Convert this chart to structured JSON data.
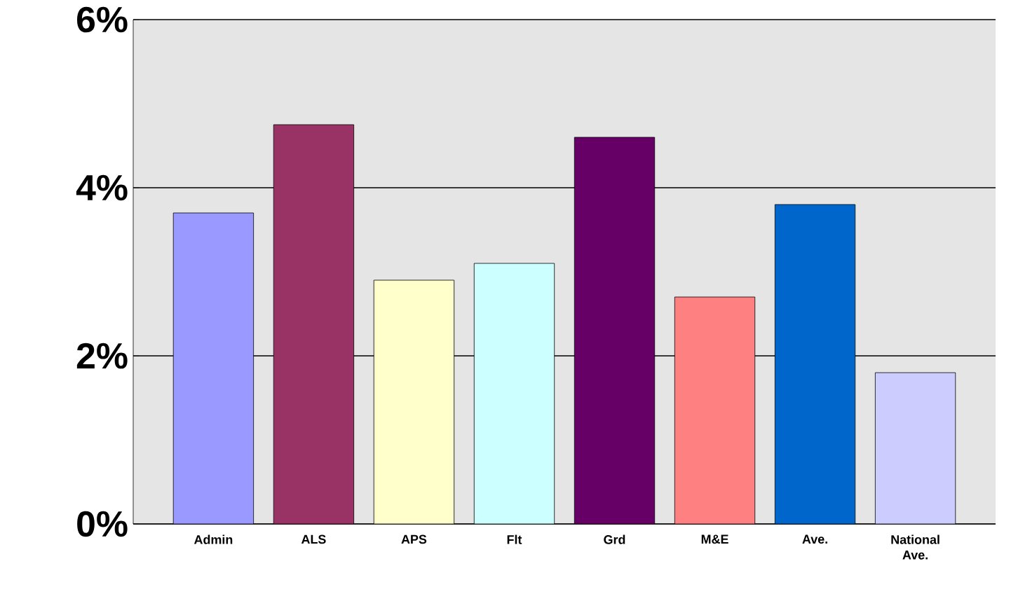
{
  "chart_data": {
    "type": "bar",
    "categories": [
      "Admin",
      "ALS",
      "APS",
      "Flt",
      "Grd",
      "M&E",
      "Ave.",
      "National Ave."
    ],
    "values": [
      3.7,
      4.75,
      2.9,
      3.1,
      4.6,
      2.7,
      3.8,
      1.8
    ],
    "colors": [
      "#9999ff",
      "#993366",
      "#ffffcc",
      "#ccffff",
      "#660066",
      "#ff8080",
      "#0066cc",
      "#ccccff"
    ],
    "ylim": [
      0,
      6
    ],
    "yticks": [
      {
        "value": 0,
        "label": "0%"
      },
      {
        "value": 2,
        "label": "2%"
      },
      {
        "value": 4,
        "label": "4%"
      },
      {
        "value": 6,
        "label": "6%"
      }
    ],
    "grid": "y"
  }
}
